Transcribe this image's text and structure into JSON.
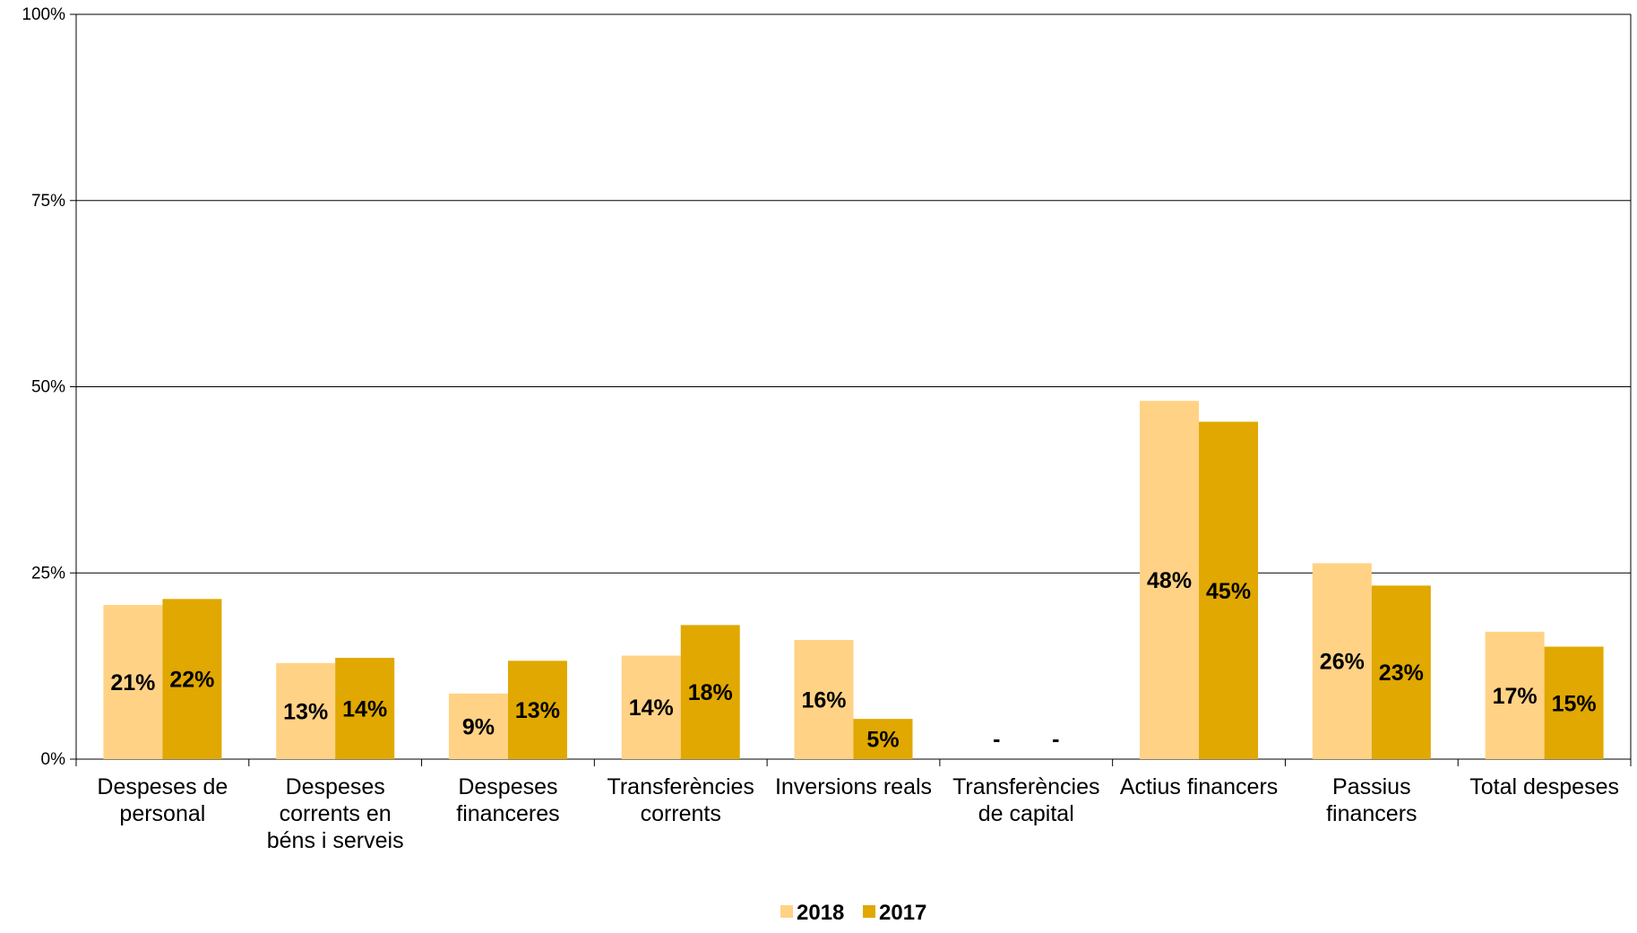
{
  "chart_data": {
    "type": "bar",
    "title": "",
    "xlabel": "",
    "ylabel": "",
    "ylim": [
      0,
      100
    ],
    "yticks": [
      "0%",
      "25%",
      "50%",
      "75%",
      "100%"
    ],
    "grid": true,
    "legend_position": "bottom",
    "categories": [
      [
        "Despeses de",
        "personal"
      ],
      [
        "Despeses",
        "corrents en",
        "béns i serveis"
      ],
      [
        "Despeses",
        "financeres"
      ],
      [
        "Transferències",
        "corrents"
      ],
      [
        "Inversions reals"
      ],
      [
        "Transferències",
        "de capital"
      ],
      [
        "Actius financers"
      ],
      [
        "Passius",
        "financers"
      ],
      [
        "Total despeses"
      ]
    ],
    "series": [
      {
        "name": "2018",
        "color": "#FFD285",
        "values": [
          20.7,
          12.9,
          8.8,
          13.9,
          16.0,
          0,
          48.1,
          26.3,
          17.1
        ],
        "labels": [
          "21%",
          "13%",
          "9%",
          "14%",
          "16%",
          "-",
          "48%",
          "26%",
          "17%"
        ]
      },
      {
        "name": "2017",
        "color": "#E0A800",
        "values": [
          21.5,
          13.6,
          13.2,
          18.0,
          5.4,
          0,
          45.3,
          23.3,
          15.1
        ],
        "labels": [
          "22%",
          "14%",
          "13%",
          "18%",
          "5%",
          "-",
          "45%",
          "23%",
          "15%"
        ]
      }
    ]
  }
}
